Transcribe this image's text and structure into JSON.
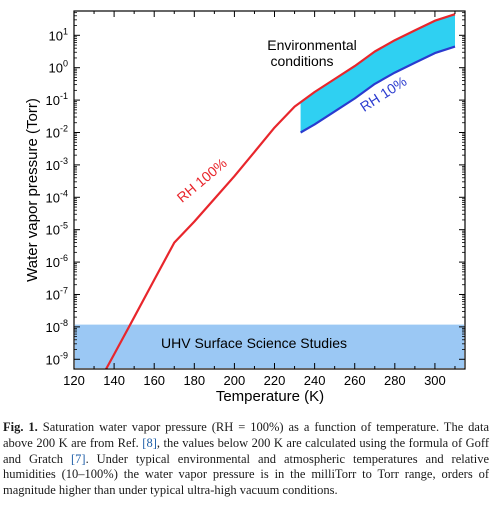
{
  "chart_data": {
    "type": "line",
    "xlabel": "Temperature (K)",
    "ylabel": "Water vapor pressure (Torr)",
    "xlim": [
      120,
      315
    ],
    "ylim": [
      -9.3,
      1.75
    ],
    "y_scale": "log10",
    "x_ticks": [
      120,
      140,
      160,
      180,
      200,
      220,
      240,
      260,
      280,
      300
    ],
    "y_ticks": [
      {
        "exp": 1,
        "label": "10^1"
      },
      {
        "exp": 0,
        "label": "10^0"
      },
      {
        "exp": -1,
        "label": "10^-1"
      },
      {
        "exp": -2,
        "label": "10^-2"
      },
      {
        "exp": -3,
        "label": "10^-3"
      },
      {
        "exp": -4,
        "label": "10^-4"
      },
      {
        "exp": -5,
        "label": "10^-5"
      },
      {
        "exp": -6,
        "label": "10^-6"
      },
      {
        "exp": -7,
        "label": "10^-7"
      },
      {
        "exp": -8,
        "label": "10^-8"
      },
      {
        "exp": -9,
        "label": "10^-9"
      }
    ],
    "series": [
      {
        "name": "RH 100%",
        "color": "#e8262c",
        "x": [
          136,
          140,
          150,
          160,
          170,
          180,
          190,
          200,
          210,
          220,
          230,
          240,
          250,
          260,
          270,
          280,
          290,
          300,
          310
        ],
        "log10_y": [
          -9.3,
          -8.85,
          -7.7,
          -6.55,
          -5.4,
          -4.75,
          -4.05,
          -3.35,
          -2.6,
          -1.85,
          -1.2,
          -0.75,
          -0.35,
          0.05,
          0.5,
          0.85,
          1.15,
          1.45,
          1.65
        ]
      },
      {
        "name": "RH 10%",
        "color": "#2a3bcf",
        "x": [
          233,
          240,
          250,
          260,
          270,
          280,
          290,
          300,
          310
        ],
        "log10_y": [
          -2.0,
          -1.75,
          -1.35,
          -0.95,
          -0.5,
          -0.15,
          0.15,
          0.45,
          0.65
        ]
      }
    ],
    "regions": [
      {
        "label": "Environmental conditions",
        "x_range": [
          233,
          310
        ],
        "between": [
          "RH 10%",
          "RH 100%"
        ],
        "color": "#2fd0f2"
      },
      {
        "label": "UHV Surface Science Studies",
        "x_range": [
          120,
          315
        ],
        "log10_y_range": [
          -9.3,
          -7.93
        ],
        "color": "#9bc8f4"
      }
    ],
    "annotations": {
      "rh100": "RH 100%",
      "rh10": "RH 10%",
      "env_line1": "Environmental",
      "env_line2": "conditions",
      "uhv": "UHV Surface Science Studies"
    },
    "grid": false
  },
  "caption": {
    "fig_label": "Fig. 1.",
    "part1": " Saturation water vapor pressure (RH = 100%) as a function of temperature. The data above 200 K are from Ref. ",
    "ref1": "[8]",
    "part2": ", the values below 200 K are calculated using the formula of Goff and Gratch ",
    "ref2": "[7]",
    "part3": ". Under typical environmental and atmospheric temperatures and relative humidities (10–100%) the water vapor pressure is in the milliTorr to Torr range, orders of magnitude higher than under typical ultra-high vacuum conditions."
  }
}
